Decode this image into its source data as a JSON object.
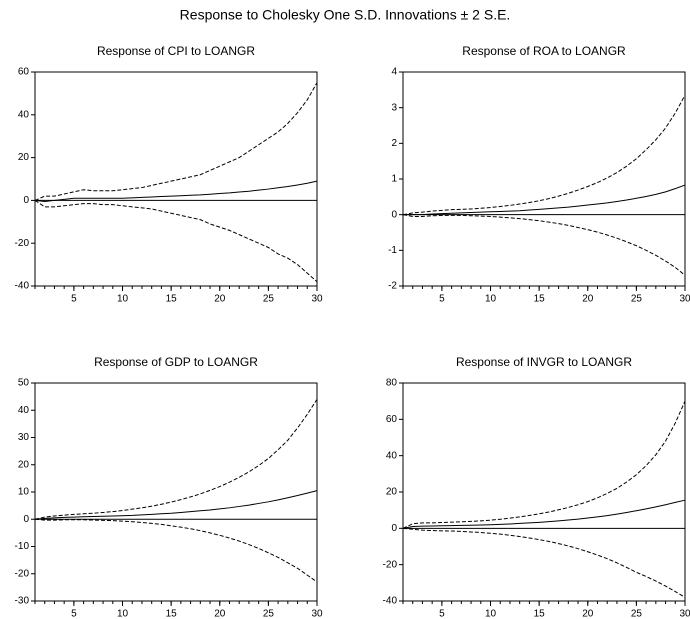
{
  "title": "Response to Cholesky One S.D. Innovations ± 2 S.E.",
  "chart_data": [
    {
      "type": "line",
      "title": "Response of CPI to LOANGR",
      "x": [
        1,
        2,
        3,
        4,
        5,
        6,
        7,
        8,
        9,
        10,
        11,
        12,
        13,
        14,
        15,
        16,
        17,
        18,
        19,
        20,
        21,
        22,
        23,
        24,
        25,
        26,
        27,
        28,
        29,
        30
      ],
      "xlim": [
        1,
        30
      ],
      "xticks": [
        5,
        10,
        15,
        20,
        25,
        30
      ],
      "ylim": [
        -40,
        60
      ],
      "yticks": [
        -40,
        -20,
        0,
        20,
        40,
        60
      ],
      "series": [
        {
          "color": "#000000",
          "dash": false,
          "values": [
            0,
            -0.5,
            0,
            0.5,
            1,
            1,
            1,
            1,
            1,
            1,
            1.2,
            1.4,
            1.6,
            1.8,
            2,
            2.2,
            2.4,
            2.6,
            2.9,
            3.2,
            3.5,
            3.9,
            4.3,
            4.8,
            5.3,
            5.9,
            6.5,
            7.2,
            8,
            9
          ]
        },
        {
          "color": "#000000",
          "dash": true,
          "values": [
            0,
            2,
            2,
            3,
            4,
            5,
            4.5,
            4.5,
            4.5,
            5,
            5.5,
            6,
            7,
            8,
            9,
            10,
            11,
            12,
            14,
            16,
            18,
            20,
            23,
            26,
            29,
            32,
            36,
            41,
            47,
            55
          ]
        },
        {
          "color": "#000000",
          "dash": true,
          "values": [
            0,
            -3,
            -3,
            -2.5,
            -2,
            -1.5,
            -1.5,
            -2,
            -2,
            -2.5,
            -3,
            -3.5,
            -4,
            -5,
            -6,
            -7,
            -8,
            -9,
            -11,
            -12.5,
            -14,
            -16,
            -18,
            -20,
            -22,
            -25,
            -27,
            -30,
            -34,
            -38
          ]
        }
      ]
    },
    {
      "type": "line",
      "title": "Response of ROA to LOANGR",
      "x": [
        1,
        2,
        3,
        4,
        5,
        6,
        7,
        8,
        9,
        10,
        11,
        12,
        13,
        14,
        15,
        16,
        17,
        18,
        19,
        20,
        21,
        22,
        23,
        24,
        25,
        26,
        27,
        28,
        29,
        30
      ],
      "xlim": [
        1,
        30
      ],
      "xticks": [
        5,
        10,
        15,
        20,
        25,
        30
      ],
      "ylim": [
        -2,
        4
      ],
      "yticks": [
        -2,
        -1,
        0,
        1,
        2,
        3,
        4
      ],
      "series": [
        {
          "color": "#000000",
          "dash": false,
          "values": [
            0,
            0,
            0,
            0.02,
            0.03,
            0.04,
            0.05,
            0.06,
            0.07,
            0.08,
            0.09,
            0.1,
            0.11,
            0.13,
            0.15,
            0.17,
            0.19,
            0.21,
            0.24,
            0.27,
            0.3,
            0.33,
            0.37,
            0.41,
            0.46,
            0.51,
            0.57,
            0.64,
            0.73,
            0.83
          ]
        },
        {
          "color": "#000000",
          "dash": true,
          "values": [
            0,
            0.05,
            0.07,
            0.1,
            0.12,
            0.14,
            0.15,
            0.16,
            0.18,
            0.2,
            0.23,
            0.26,
            0.3,
            0.34,
            0.39,
            0.45,
            0.52,
            0.6,
            0.69,
            0.79,
            0.9,
            1.03,
            1.18,
            1.36,
            1.57,
            1.82,
            2.1,
            2.43,
            2.85,
            3.35
          ]
        },
        {
          "color": "#000000",
          "dash": true,
          "values": [
            0,
            -0.05,
            -0.05,
            -0.03,
            -0.02,
            -0.02,
            -0.02,
            -0.03,
            -0.04,
            -0.05,
            -0.07,
            -0.09,
            -0.11,
            -0.14,
            -0.17,
            -0.21,
            -0.25,
            -0.3,
            -0.36,
            -0.42,
            -0.49,
            -0.57,
            -0.66,
            -0.76,
            -0.87,
            -1,
            -1.14,
            -1.3,
            -1.48,
            -1.7
          ]
        }
      ]
    },
    {
      "type": "line",
      "title": "Response of GDP to LOANGR",
      "x": [
        1,
        2,
        3,
        4,
        5,
        6,
        7,
        8,
        9,
        10,
        11,
        12,
        13,
        14,
        15,
        16,
        17,
        18,
        19,
        20,
        21,
        22,
        23,
        24,
        25,
        26,
        27,
        28,
        29,
        30
      ],
      "xlim": [
        1,
        30
      ],
      "xticks": [
        5,
        10,
        15,
        20,
        25,
        30
      ],
      "ylim": [
        -30,
        50
      ],
      "yticks": [
        -30,
        -20,
        -10,
        0,
        10,
        20,
        30,
        40,
        50
      ],
      "series": [
        {
          "color": "#000000",
          "dash": false,
          "values": [
            0,
            0.3,
            0.5,
            0.7,
            0.8,
            0.9,
            1,
            1.1,
            1.2,
            1.3,
            1.4,
            1.6,
            1.8,
            2,
            2.2,
            2.5,
            2.8,
            3.1,
            3.4,
            3.8,
            4.2,
            4.7,
            5.2,
            5.8,
            6.4,
            7.1,
            7.9,
            8.7,
            9.6,
            10.5
          ]
        },
        {
          "color": "#000000",
          "dash": true,
          "values": [
            0,
            0.8,
            1.2,
            1.5,
            1.8,
            2,
            2.2,
            2.5,
            2.8,
            3.2,
            3.7,
            4.2,
            4.8,
            5.5,
            6.3,
            7.2,
            8.2,
            9.3,
            10.6,
            12,
            13.6,
            15.4,
            17.4,
            19.7,
            22.3,
            25.5,
            29,
            33.5,
            38.5,
            44
          ]
        },
        {
          "color": "#000000",
          "dash": true,
          "values": [
            0,
            -0.3,
            -0.3,
            -0.2,
            -0.2,
            -0.2,
            -0.3,
            -0.4,
            -0.5,
            -0.7,
            -0.9,
            -1.2,
            -1.5,
            -1.9,
            -2.4,
            -2.9,
            -3.5,
            -4.2,
            -5,
            -5.9,
            -6.9,
            -8,
            -9.3,
            -10.7,
            -12.3,
            -14,
            -16,
            -18,
            -20.5,
            -23
          ]
        }
      ]
    },
    {
      "type": "line",
      "title": "Response of INVGR to LOANGR",
      "x": [
        1,
        2,
        3,
        4,
        5,
        6,
        7,
        8,
        9,
        10,
        11,
        12,
        13,
        14,
        15,
        16,
        17,
        18,
        19,
        20,
        21,
        22,
        23,
        24,
        25,
        26,
        27,
        28,
        29,
        30
      ],
      "xlim": [
        1,
        30
      ],
      "xticks": [
        5,
        10,
        15,
        20,
        25,
        30
      ],
      "ylim": [
        -40,
        80
      ],
      "yticks": [
        -40,
        -20,
        0,
        20,
        40,
        60,
        80
      ],
      "series": [
        {
          "color": "#000000",
          "dash": false,
          "values": [
            0,
            1,
            1.2,
            1.3,
            1.4,
            1.5,
            1.6,
            1.7,
            1.8,
            2,
            2.2,
            2.4,
            2.7,
            3,
            3.3,
            3.7,
            4.1,
            4.6,
            5.1,
            5.7,
            6.3,
            7,
            7.8,
            8.7,
            9.7,
            10.7,
            11.8,
            13,
            14.3,
            15.5
          ]
        },
        {
          "color": "#000000",
          "dash": true,
          "values": [
            0,
            2.5,
            3,
            3,
            3.2,
            3.4,
            3.6,
            3.8,
            4.1,
            4.5,
            5,
            5.6,
            6.3,
            7.1,
            8,
            9,
            10.2,
            11.5,
            13,
            14.7,
            16.8,
            19.2,
            22,
            25.5,
            29.5,
            34.5,
            40.5,
            48,
            58,
            70
          ]
        },
        {
          "color": "#000000",
          "dash": true,
          "values": [
            0,
            -0.5,
            -1,
            -1.2,
            -1.4,
            -1.5,
            -1.7,
            -2,
            -2.3,
            -2.7,
            -3.2,
            -3.8,
            -4.5,
            -5.3,
            -6.2,
            -7.2,
            -8.4,
            -9.7,
            -11.2,
            -12.9,
            -14.7,
            -16.7,
            -19,
            -21.5,
            -24.2,
            -26.5,
            -29,
            -31.8,
            -34.8,
            -38
          ]
        }
      ]
    }
  ]
}
